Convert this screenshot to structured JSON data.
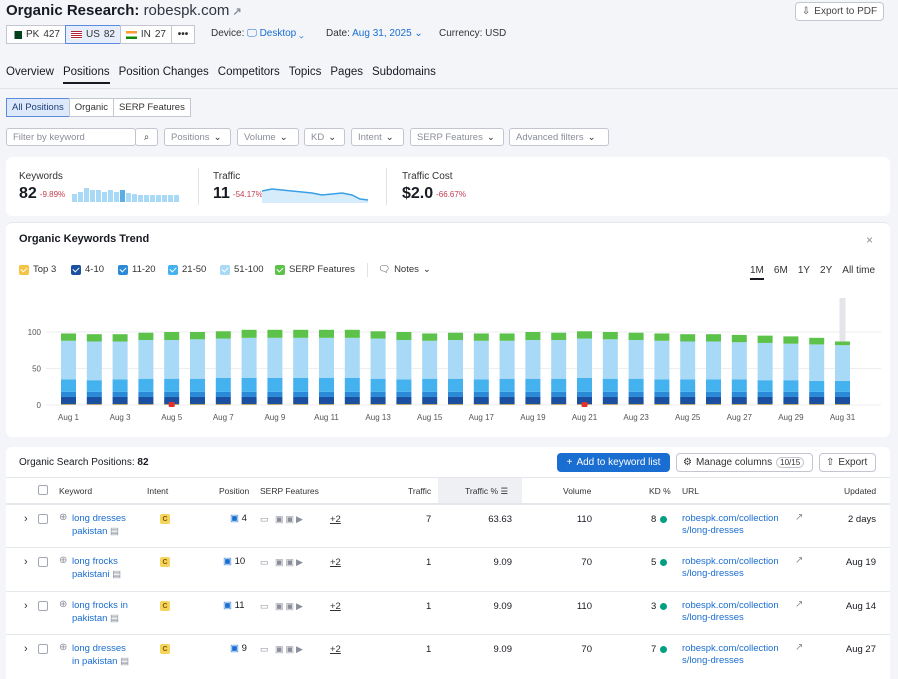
{
  "header": {
    "title_prefix": "Organic Research:",
    "domain": "robespk.com",
    "export_pdf": "Export to PDF"
  },
  "databases": [
    {
      "code": "PK",
      "count": "427",
      "selected": false
    },
    {
      "code": "US",
      "count": "82",
      "selected": true
    },
    {
      "code": "IN",
      "count": "27",
      "selected": false
    }
  ],
  "more_label": "•••",
  "meta": {
    "device_label": "Device:",
    "device_value": "Desktop",
    "date_label": "Date:",
    "date_value": "Aug 31, 2025",
    "currency_label": "Currency:",
    "currency_value": "USD"
  },
  "tabs": [
    "Overview",
    "Positions",
    "Position Changes",
    "Competitors",
    "Topics",
    "Pages",
    "Subdomains"
  ],
  "active_tab": "Positions",
  "segments": [
    "All Positions",
    "Organic",
    "SERP Features"
  ],
  "filters": {
    "search_placeholder": "Filter by keyword",
    "dropdowns": [
      "Positions",
      "Volume",
      "KD",
      "Intent",
      "SERP Features",
      "Advanced filters"
    ]
  },
  "summary": {
    "keywords": {
      "label": "Keywords",
      "value": "82",
      "change": "-9.89%"
    },
    "traffic": {
      "label": "Traffic",
      "value": "11",
      "change": "-54.17%"
    },
    "traffic_cost": {
      "label": "Traffic Cost",
      "value": "$2.0",
      "change": "-66.67%"
    }
  },
  "trend": {
    "title": "Organic Keywords Trend",
    "legend": [
      "Top 3",
      "4-10",
      "11-20",
      "21-50",
      "51-100",
      "SERP Features"
    ],
    "notes": "Notes",
    "ranges": [
      "1M",
      "6M",
      "1Y",
      "2Y",
      "All time"
    ],
    "active_range": "1M"
  },
  "chart_data": {
    "type": "bar",
    "stacked": true,
    "categories": [
      "Aug 1",
      "Aug 2",
      "Aug 3",
      "Aug 4",
      "Aug 5",
      "Aug 6",
      "Aug 7",
      "Aug 8",
      "Aug 9",
      "Aug 10",
      "Aug 11",
      "Aug 12",
      "Aug 13",
      "Aug 14",
      "Aug 15",
      "Aug 16",
      "Aug 17",
      "Aug 18",
      "Aug 19",
      "Aug 20",
      "Aug 21",
      "Aug 22",
      "Aug 23",
      "Aug 24",
      "Aug 25",
      "Aug 26",
      "Aug 27",
      "Aug 28",
      "Aug 29",
      "Aug 30",
      "Aug 31"
    ],
    "tick_labels": [
      "Aug 1",
      "Aug 3",
      "Aug 5",
      "Aug 7",
      "Aug 9",
      "Aug 11",
      "Aug 13",
      "Aug 15",
      "Aug 17",
      "Aug 19",
      "Aug 21",
      "Aug 23",
      "Aug 25",
      "Aug 27",
      "Aug 29",
      "Aug 31"
    ],
    "y_ticks": [
      "0",
      "50",
      "100"
    ],
    "ylim": [
      0,
      100
    ],
    "series": [
      {
        "name": "Top 3",
        "color": "#f6c443",
        "values": [
          1,
          1,
          1,
          1,
          1,
          1,
          1,
          1,
          1,
          1,
          1,
          1,
          1,
          1,
          1,
          1,
          1,
          1,
          1,
          1,
          1,
          1,
          1,
          1,
          1,
          1,
          1,
          1,
          1,
          1,
          1
        ]
      },
      {
        "name": "4-10",
        "color": "#1b4fa0",
        "values": [
          10,
          10,
          10,
          10,
          10,
          10,
          10,
          10,
          10,
          10,
          10,
          10,
          10,
          10,
          10,
          10,
          10,
          10,
          10,
          10,
          10,
          10,
          10,
          10,
          10,
          10,
          10,
          10,
          10,
          10,
          10
        ]
      },
      {
        "name": "11-20",
        "color": "#2a8ad8",
        "values": [
          7,
          7,
          7,
          7,
          7,
          7,
          7,
          7,
          7,
          7,
          7,
          7,
          7,
          7,
          7,
          7,
          7,
          7,
          7,
          7,
          7,
          7,
          7,
          7,
          7,
          7,
          7,
          7,
          7,
          7,
          7
        ]
      },
      {
        "name": "21-50",
        "color": "#43b2ee",
        "values": [
          17,
          16,
          17,
          18,
          18,
          18,
          19,
          19,
          19,
          19,
          19,
          19,
          18,
          17,
          18,
          18,
          17,
          18,
          18,
          18,
          19,
          18,
          18,
          17,
          17,
          17,
          17,
          16,
          16,
          15,
          15
        ]
      },
      {
        "name": "51-100",
        "color": "#a8d9f7",
        "values": [
          53,
          53,
          52,
          53,
          53,
          54,
          54,
          55,
          55,
          55,
          55,
          55,
          55,
          54,
          52,
          53,
          53,
          52,
          53,
          53,
          54,
          54,
          53,
          53,
          52,
          52,
          51,
          51,
          50,
          50,
          49
        ]
      },
      {
        "name": "SERP Features",
        "color": "#5cc24a",
        "values": [
          10,
          10,
          10,
          10,
          11,
          10,
          10,
          11,
          11,
          11,
          11,
          11,
          10,
          11,
          10,
          10,
          10,
          10,
          11,
          10,
          10,
          10,
          10,
          10,
          10,
          10,
          10,
          10,
          10,
          9,
          5
        ]
      }
    ]
  },
  "table": {
    "title": "Organic Search Positions:",
    "count": "82",
    "add_button": "Add to keyword list",
    "manage_columns": "Manage columns",
    "columns_count": "10/15",
    "export": "Export",
    "headers": [
      "Keyword",
      "Intent",
      "Position",
      "SERP Features",
      "Traffic",
      "Traffic %",
      "Volume",
      "KD %",
      "URL",
      "Updated"
    ],
    "rows": [
      {
        "keyword1": "long dresses",
        "keyword2": "pakistan",
        "intent": "C",
        "position": "4",
        "serp_more": "+2",
        "traffic": "7",
        "traffic_pct": "63.63",
        "volume": "110",
        "kd": "8",
        "url1": "robespk.com/collection",
        "url2": "s/long-dresses",
        "updated": "2 days"
      },
      {
        "keyword1": "long frocks",
        "keyword2": "pakistani",
        "intent": "C",
        "position": "10",
        "serp_more": "+2",
        "traffic": "1",
        "traffic_pct": "9.09",
        "volume": "70",
        "kd": "5",
        "url1": "robespk.com/collection",
        "url2": "s/long-dresses",
        "updated": "Aug 19"
      },
      {
        "keyword1": "long frocks in",
        "keyword2": "pakistan",
        "intent": "C",
        "position": "11",
        "serp_more": "+2",
        "traffic": "1",
        "traffic_pct": "9.09",
        "volume": "110",
        "kd": "3",
        "url1": "robespk.com/collection",
        "url2": "s/long-dresses",
        "updated": "Aug 14"
      },
      {
        "keyword1": "long dresses",
        "keyword2": "in pakistan",
        "intent": "C",
        "position": "9",
        "serp_more": "+2",
        "traffic": "1",
        "traffic_pct": "9.09",
        "volume": "70",
        "kd": "7",
        "url1": "robespk.com/collection",
        "url2": "s/long-dresses",
        "updated": "Aug 27"
      }
    ]
  }
}
